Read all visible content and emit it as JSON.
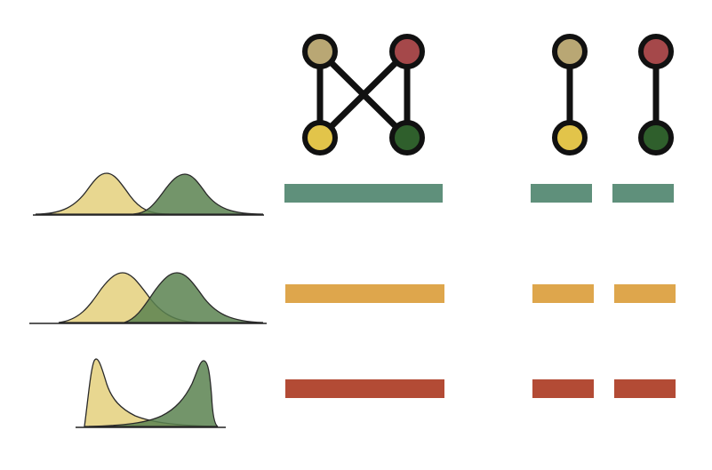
{
  "colors": {
    "background": "#ffffff",
    "stroke": "#111111",
    "node_tan": "#b9a774",
    "node_red": "#a5484a",
    "node_yellow": "#e2c44a",
    "node_green": "#2f5f2c",
    "dist_yellow": "#e4d07c",
    "dist_green": "#5b8350",
    "bar_teal": "#5f907b",
    "bar_orange": "#dea64c",
    "bar_red": "#b34b35"
  },
  "graphs": [
    {
      "name": "fully-connected-graph",
      "nodes": [
        "node_tan",
        "node_red",
        "node_yellow",
        "node_green"
      ],
      "edges": [
        [
          "node_tan",
          "node_yellow"
        ],
        [
          "node_tan",
          "node_green"
        ],
        [
          "node_red",
          "node_yellow"
        ],
        [
          "node_red",
          "node_green"
        ]
      ]
    },
    {
      "name": "paired-graph",
      "nodes": [
        "node_tan",
        "node_yellow",
        "node_red",
        "node_green"
      ],
      "edges": [
        [
          "node_tan",
          "node_yellow"
        ],
        [
          "node_red",
          "node_green"
        ]
      ]
    }
  ],
  "rows": [
    {
      "distribution": "well-separated",
      "bar_color": "bar_teal"
    },
    {
      "distribution": "overlapping",
      "bar_color": "bar_orange"
    },
    {
      "distribution": "skewed-bimodal",
      "bar_color": "bar_red"
    }
  ]
}
